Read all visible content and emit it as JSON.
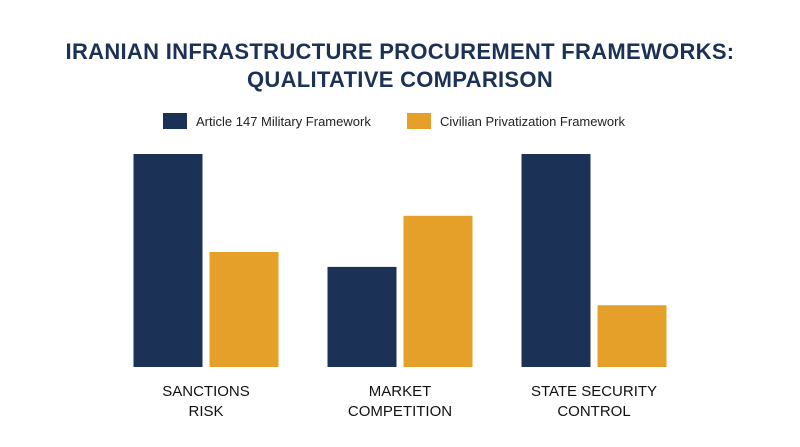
{
  "title": {
    "line1": "IRANIAN INFRASTRUCTURE PROCUREMENT FRAMEWORKS:",
    "line2": "QUALITATIVE COMPARISON"
  },
  "legend": [
    {
      "label": "Article 147 Military Framework",
      "color": "#1b3155"
    },
    {
      "label": "Civilian Privatization Framework",
      "color": "#e5a02a"
    }
  ],
  "chart_data": {
    "type": "bar",
    "title": "IRANIAN INFRASTRUCTURE PROCUREMENT FRAMEWORKS: QUALITATIVE COMPARISON",
    "categories": [
      [
        "SANCTIONS",
        "RISK"
      ],
      [
        "MARKET",
        "COMPETITION"
      ],
      [
        "STATE SECURITY",
        "CONTROL"
      ]
    ],
    "series": [
      {
        "name": "Article 147 Military Framework",
        "color": "#1b3155",
        "values": [
          100,
          47,
          100
        ]
      },
      {
        "name": "Civilian Privatization Framework",
        "color": "#e5a02a",
        "values": [
          54,
          71,
          29
        ]
      }
    ],
    "ylim": [
      0,
      100
    ],
    "grid": false,
    "y_axis_shown": false,
    "legend_position": "top-center"
  }
}
